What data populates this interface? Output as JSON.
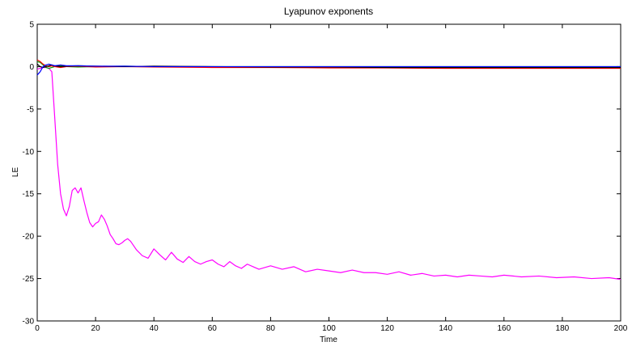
{
  "chart_data": {
    "type": "line",
    "title": "Lyapunov exponents",
    "xlabel": "Time",
    "ylabel": "LE",
    "xlim": [
      0,
      200
    ],
    "ylim": [
      -30,
      5
    ],
    "xticks": [
      0,
      20,
      40,
      60,
      80,
      100,
      120,
      140,
      160,
      180,
      200
    ],
    "yticks": [
      5,
      0,
      -5,
      -10,
      -15,
      -20,
      -25,
      -30
    ],
    "grid": false,
    "legend": "none",
    "series": [
      {
        "color": "#ff00ff",
        "x": [
          0,
          1,
          2,
          3,
          4,
          5,
          6,
          7,
          8,
          9,
          10,
          11,
          12,
          13,
          14,
          15,
          16,
          17,
          18,
          19,
          20,
          21,
          22,
          23,
          24,
          25,
          26,
          27,
          28,
          29,
          30,
          31,
          32,
          34,
          36,
          38,
          40,
          42,
          44,
          46,
          48,
          50,
          52,
          54,
          56,
          58,
          60,
          62,
          64,
          66,
          68,
          70,
          72,
          74,
          76,
          78,
          80,
          84,
          88,
          92,
          96,
          100,
          104,
          108,
          112,
          116,
          120,
          124,
          128,
          132,
          136,
          140,
          144,
          148,
          152,
          156,
          160,
          166,
          172,
          178,
          184,
          190,
          196,
          200
        ],
        "y": [
          -0.3,
          -0.2,
          -0.1,
          -0.1,
          -0.2,
          -0.6,
          -6.0,
          -11.5,
          -15.0,
          -16.8,
          -17.6,
          -16.5,
          -14.6,
          -14.3,
          -14.9,
          -14.3,
          -15.8,
          -17.2,
          -18.4,
          -18.9,
          -18.5,
          -18.3,
          -17.5,
          -18.0,
          -18.8,
          -19.8,
          -20.3,
          -20.9,
          -21.0,
          -20.8,
          -20.5,
          -20.3,
          -20.6,
          -21.6,
          -22.3,
          -22.6,
          -21.5,
          -22.2,
          -22.8,
          -21.9,
          -22.7,
          -23.1,
          -22.4,
          -23.0,
          -23.3,
          -23.0,
          -22.8,
          -23.3,
          -23.6,
          -23.0,
          -23.5,
          -23.8,
          -23.3,
          -23.6,
          -23.9,
          -23.7,
          -23.5,
          -23.9,
          -23.6,
          -24.2,
          -23.9,
          -24.1,
          -24.3,
          -24.0,
          -24.3,
          -24.3,
          -24.5,
          -24.2,
          -24.6,
          -24.4,
          -24.7,
          -24.6,
          -24.8,
          -24.6,
          -24.7,
          -24.8,
          -24.6,
          -24.8,
          -24.7,
          -24.9,
          -24.8,
          -25.0,
          -24.9,
          -25.1
        ]
      },
      {
        "color": "#00a000",
        "x": [
          0,
          1,
          2,
          3,
          4,
          5,
          6,
          8,
          10,
          14,
          20,
          30,
          40,
          60,
          80,
          100,
          120,
          140,
          160,
          180,
          200
        ],
        "y": [
          0.6,
          0.5,
          0.2,
          -0.1,
          -0.2,
          -0.1,
          0.0,
          0.1,
          0.0,
          -0.05,
          0.0,
          0.05,
          0.0,
          0.0,
          0.0,
          0.0,
          0.0,
          0.0,
          0.0,
          0.0,
          0.0
        ]
      },
      {
        "color": "#ff0000",
        "x": [
          0,
          1,
          2,
          3,
          4,
          5,
          6,
          8,
          10,
          14,
          20,
          30,
          40,
          60,
          80,
          100,
          120,
          140,
          160,
          180,
          200
        ],
        "y": [
          0.8,
          0.6,
          0.3,
          0.1,
          0.0,
          0.1,
          0.0,
          -0.1,
          0.0,
          0.05,
          -0.05,
          0.0,
          -0.05,
          -0.1,
          -0.1,
          -0.15,
          -0.15,
          -0.2,
          -0.2,
          -0.2,
          -0.2
        ]
      },
      {
        "color": "#000000",
        "x": [
          0,
          1,
          2,
          3,
          4,
          5,
          6,
          8,
          10,
          14,
          20,
          30,
          40,
          60,
          80,
          100,
          120,
          140,
          160,
          180,
          200
        ],
        "y": [
          0.3,
          0.0,
          -0.1,
          0.0,
          0.1,
          0.2,
          0.1,
          0.0,
          0.05,
          0.1,
          0.05,
          0.0,
          0.05,
          0.0,
          -0.05,
          -0.05,
          -0.1,
          -0.1,
          -0.1,
          -0.1,
          -0.1
        ]
      },
      {
        "color": "#0000ff",
        "x": [
          0,
          0.5,
          1,
          1.5,
          2,
          3,
          4,
          5,
          6,
          8,
          10,
          14,
          20,
          30,
          40,
          60,
          80,
          100,
          120,
          140,
          160,
          180,
          200
        ],
        "y": [
          -1.0,
          -0.8,
          -0.6,
          -0.3,
          0.0,
          0.2,
          0.3,
          0.2,
          0.1,
          0.2,
          0.1,
          0.1,
          0.05,
          0.05,
          0.0,
          0.0,
          0.0,
          0.0,
          0.0,
          0.0,
          0.0,
          0.0,
          0.0
        ]
      }
    ]
  }
}
